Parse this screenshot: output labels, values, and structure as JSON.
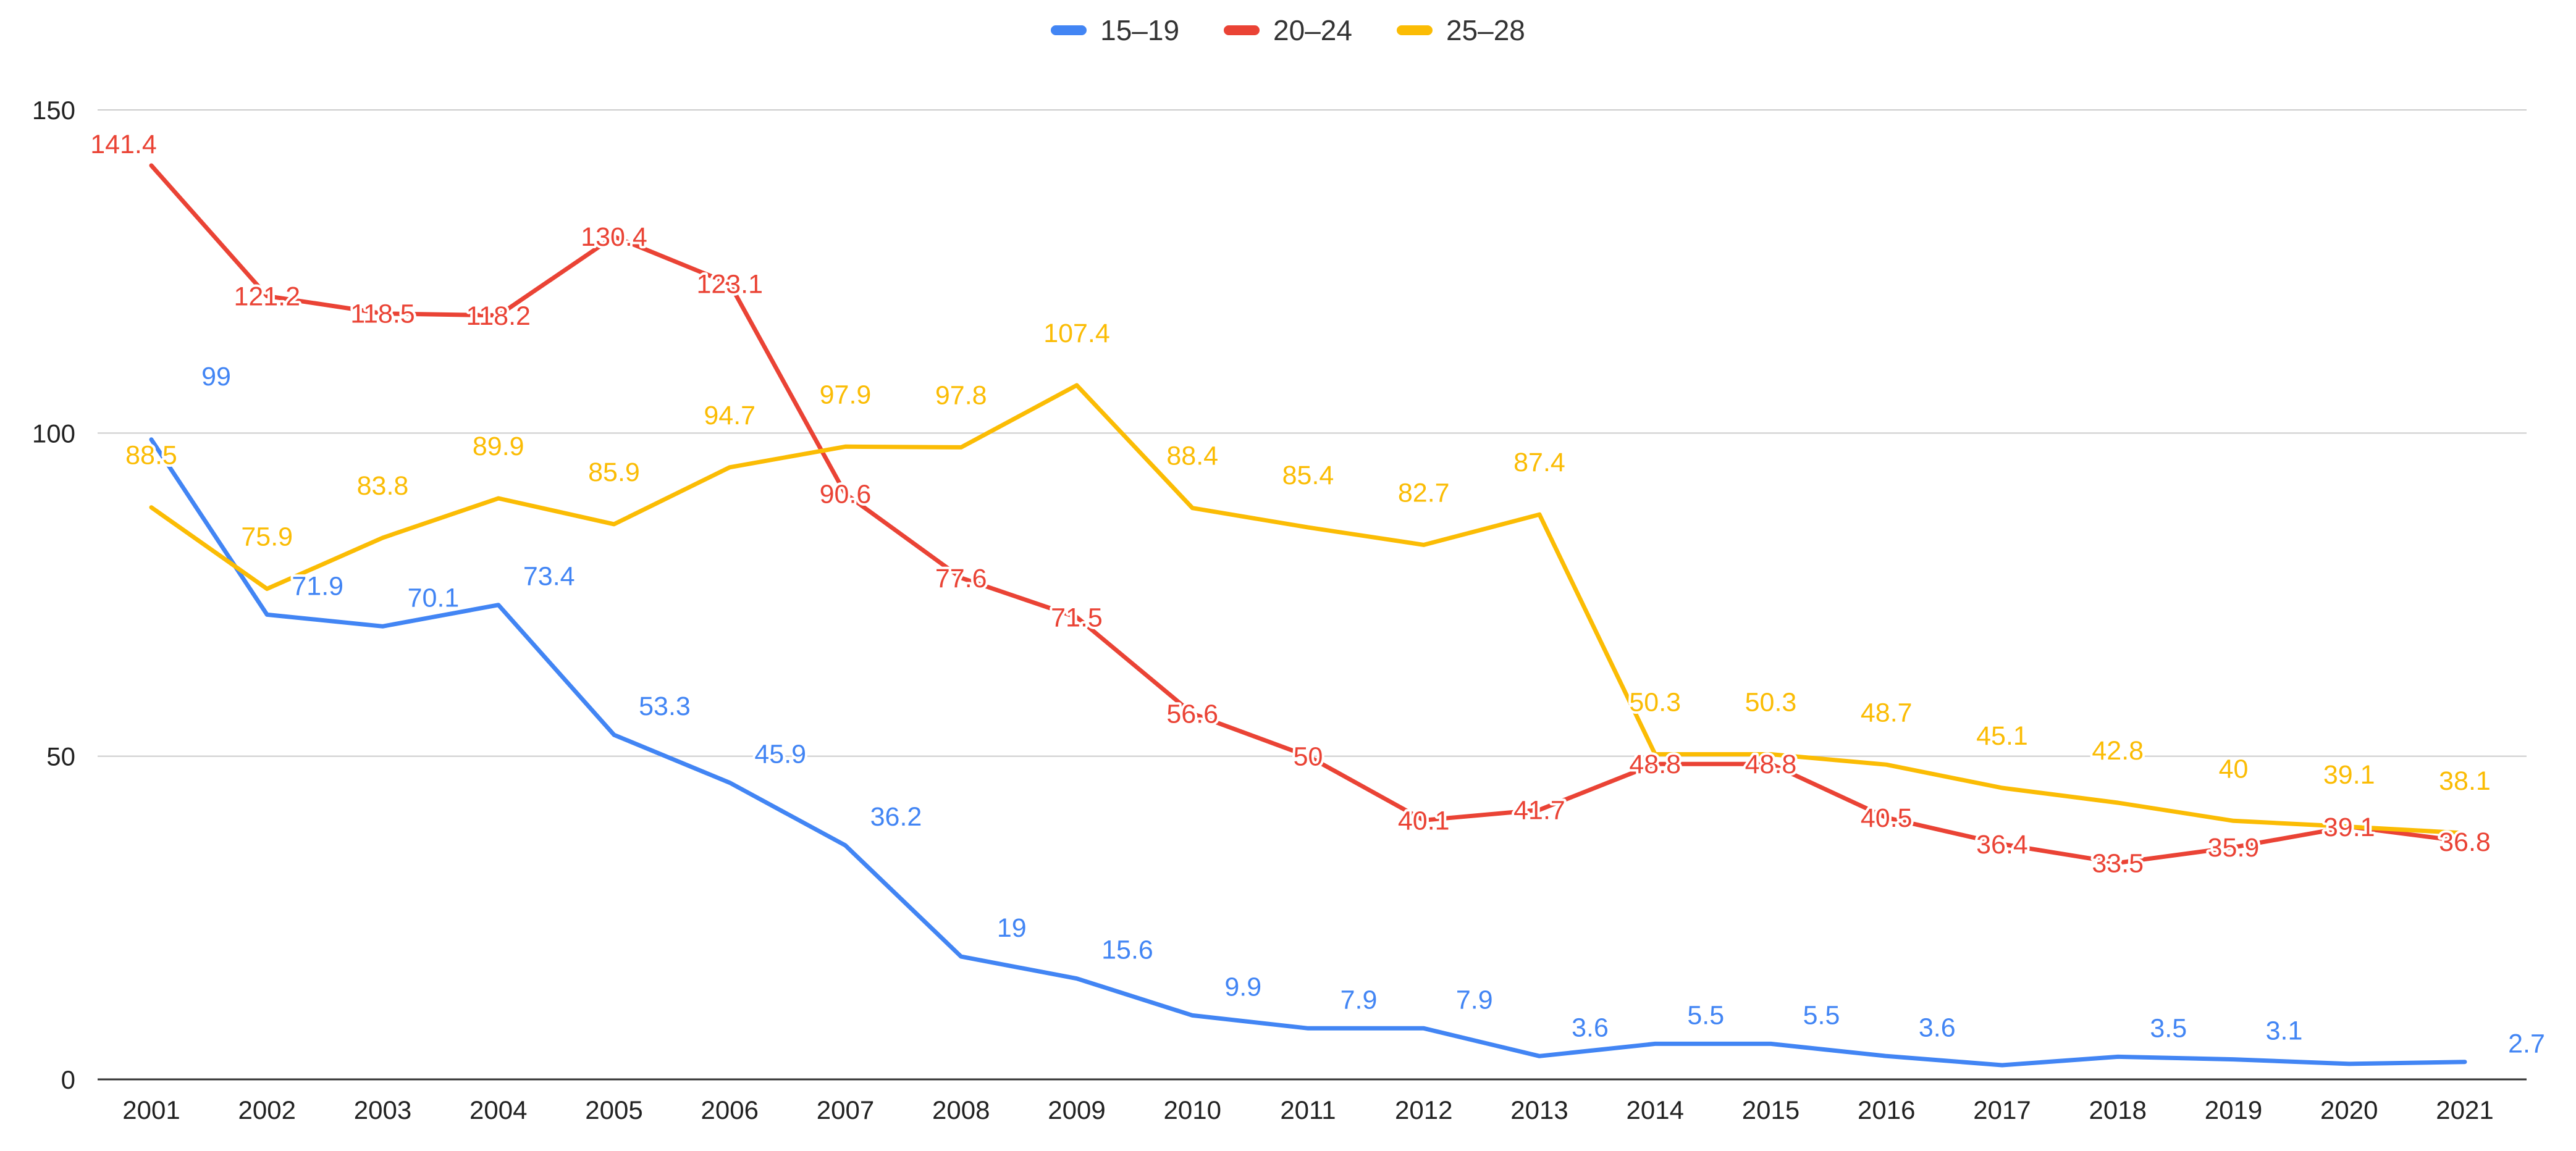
{
  "chart_data": {
    "type": "line",
    "title": "",
    "xlabel": "",
    "ylabel": "",
    "ylim": [
      0,
      150
    ],
    "yticks": [
      0,
      50,
      100,
      150
    ],
    "grid": true,
    "legend": "top-center",
    "categories": [
      "2001",
      "2002",
      "2003",
      "2004",
      "2005",
      "2006",
      "2007",
      "2008",
      "2009",
      "2010",
      "2011",
      "2012",
      "2013",
      "2014",
      "2015",
      "2016",
      "2017",
      "2018",
      "2019",
      "2020",
      "2021"
    ],
    "series": [
      {
        "name": "15–19",
        "color": "#4285F4",
        "values": [
          99,
          71.9,
          70.1,
          73.4,
          53.3,
          45.9,
          36.2,
          19,
          15.6,
          9.9,
          7.9,
          7.9,
          3.6,
          5.5,
          5.5,
          3.6,
          2.2,
          3.5,
          3.1,
          2.4,
          2.7
        ],
        "labels": [
          "99",
          "71.9",
          "70.1",
          "73.4",
          "53.3",
          "45.9",
          "36.2",
          "19",
          "15.6",
          "9.9",
          "7.9",
          "7.9",
          "3.6",
          "5.5",
          "5.5",
          "3.6",
          "",
          "3.5",
          "3.1",
          "",
          "2.7"
        ]
      },
      {
        "name": "20–24",
        "color": "#EA4335",
        "values": [
          141.4,
          121.2,
          118.5,
          118.2,
          130.4,
          123.1,
          90.6,
          77.6,
          71.5,
          56.6,
          50,
          40.1,
          41.7,
          48.8,
          48.8,
          40.5,
          36.4,
          33.5,
          35.9,
          39.1,
          36.8
        ],
        "labels": [
          "141.4",
          "121.2",
          "118.5",
          "118.2",
          "130.4",
          "123.1",
          "90.6",
          "77.6",
          "71.5",
          "56.6",
          "50",
          "40.1",
          "41.7",
          "48.8",
          "48.8",
          "40.5",
          "36.4",
          "33.5",
          "35.9",
          "39.1",
          "36.8"
        ]
      },
      {
        "name": "25–28",
        "color": "#FBBC04",
        "values": [
          88.5,
          75.9,
          83.8,
          89.9,
          85.9,
          94.7,
          97.9,
          97.8,
          107.4,
          88.4,
          85.4,
          82.7,
          87.4,
          50.3,
          50.3,
          48.7,
          45.1,
          42.8,
          40,
          39.1,
          38.1
        ],
        "labels": [
          "88.5",
          "75.9",
          "83.8",
          "89.9",
          "85.9",
          "94.7",
          "97.9",
          "97.8",
          "107.4",
          "88.4",
          "85.4",
          "82.7",
          "87.4",
          "50.3",
          "50.3",
          "48.7",
          "45.1",
          "42.8",
          "40",
          "39.1",
          "38.1"
        ]
      }
    ]
  }
}
